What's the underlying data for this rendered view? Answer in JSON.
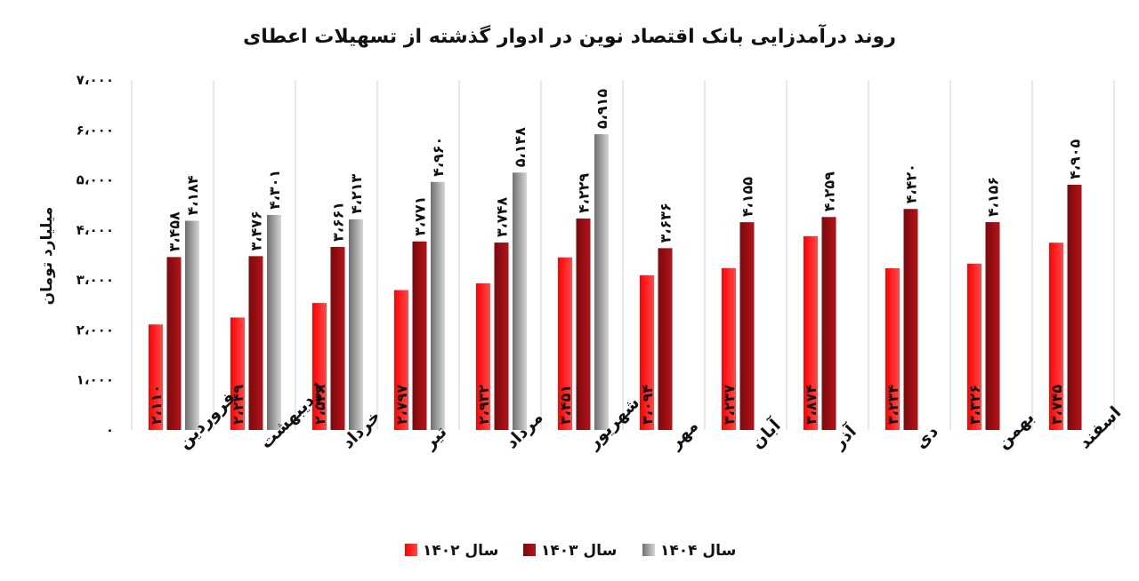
{
  "chart_data": {
    "type": "bar",
    "title": "روند درآمدزایی بانک اقتصاد نوین در ادوار گذشته از تسهیلات اعطای",
    "ylabel": "میلیارد تومان",
    "xlabel": "",
    "ylim": [
      0,
      7000
    ],
    "yticks": [
      0,
      1000,
      2000,
      3000,
      4000,
      5000,
      6000,
      7000
    ],
    "ytick_labels": [
      "۰",
      "۱،۰۰۰",
      "۲،۰۰۰",
      "۳،۰۰۰",
      "۴،۰۰۰",
      "۵،۰۰۰",
      "۶،۰۰۰",
      "۷،۰۰۰"
    ],
    "grid": "vertical-separators",
    "legend_position": "bottom",
    "categories": [
      "فروردین",
      "اردیبهشت",
      "خرداد",
      "تیر",
      "مرداد",
      "شهریور",
      "مهر",
      "آبان",
      "آذر",
      "دی",
      "بهمن",
      "اسفند"
    ],
    "series": [
      {
        "name": "سال ۱۴۰۲",
        "color": "#ff1a1a",
        "values": [
          2110,
          2249,
          2539,
          2797,
          2932,
          3451,
          3094,
          3237,
          3874,
          3234,
          3326,
          3745
        ],
        "labels": [
          "۲،۱۱۰",
          "۲،۲۴۹",
          "۲،۵۳۹",
          "۲،۷۹۷",
          "۲،۹۳۲",
          "۳،۴۵۱",
          "۳،۰۹۴",
          "۳،۲۳۷",
          "۳،۸۷۴",
          "۳،۲۳۴",
          "۳،۳۲۶",
          "۳،۷۴۵"
        ]
      },
      {
        "name": "سال ۱۴۰۳",
        "color": "#a80f14",
        "values": [
          3458,
          3476,
          3661,
          3771,
          3748,
          4229,
          3636,
          4155,
          4259,
          4420,
          4156,
          4905
        ],
        "labels": [
          "۳،۴۵۸",
          "۳،۴۷۶",
          "۳،۶۶۱",
          "۳،۷۷۱",
          "۳،۷۴۸",
          "۴،۲۲۹",
          "۳،۶۳۶",
          "۴،۱۵۵",
          "۴،۲۵۹",
          "۴،۴۲۰",
          "۴،۱۵۶",
          "۴،۹۰۵"
        ]
      },
      {
        "name": "سال ۱۴۰۴",
        "color": "#a6a6a6",
        "values": [
          4184,
          4301,
          4213,
          4960,
          5148,
          5915,
          null,
          null,
          null,
          null,
          null,
          null
        ],
        "labels": [
          "۴،۱۸۴",
          "۴،۳۰۱",
          "۴،۲۱۳",
          "۴،۹۶۰",
          "۵،۱۴۸",
          "۵،۹۱۵",
          "",
          "",
          "",
          "",
          "",
          ""
        ]
      }
    ]
  }
}
